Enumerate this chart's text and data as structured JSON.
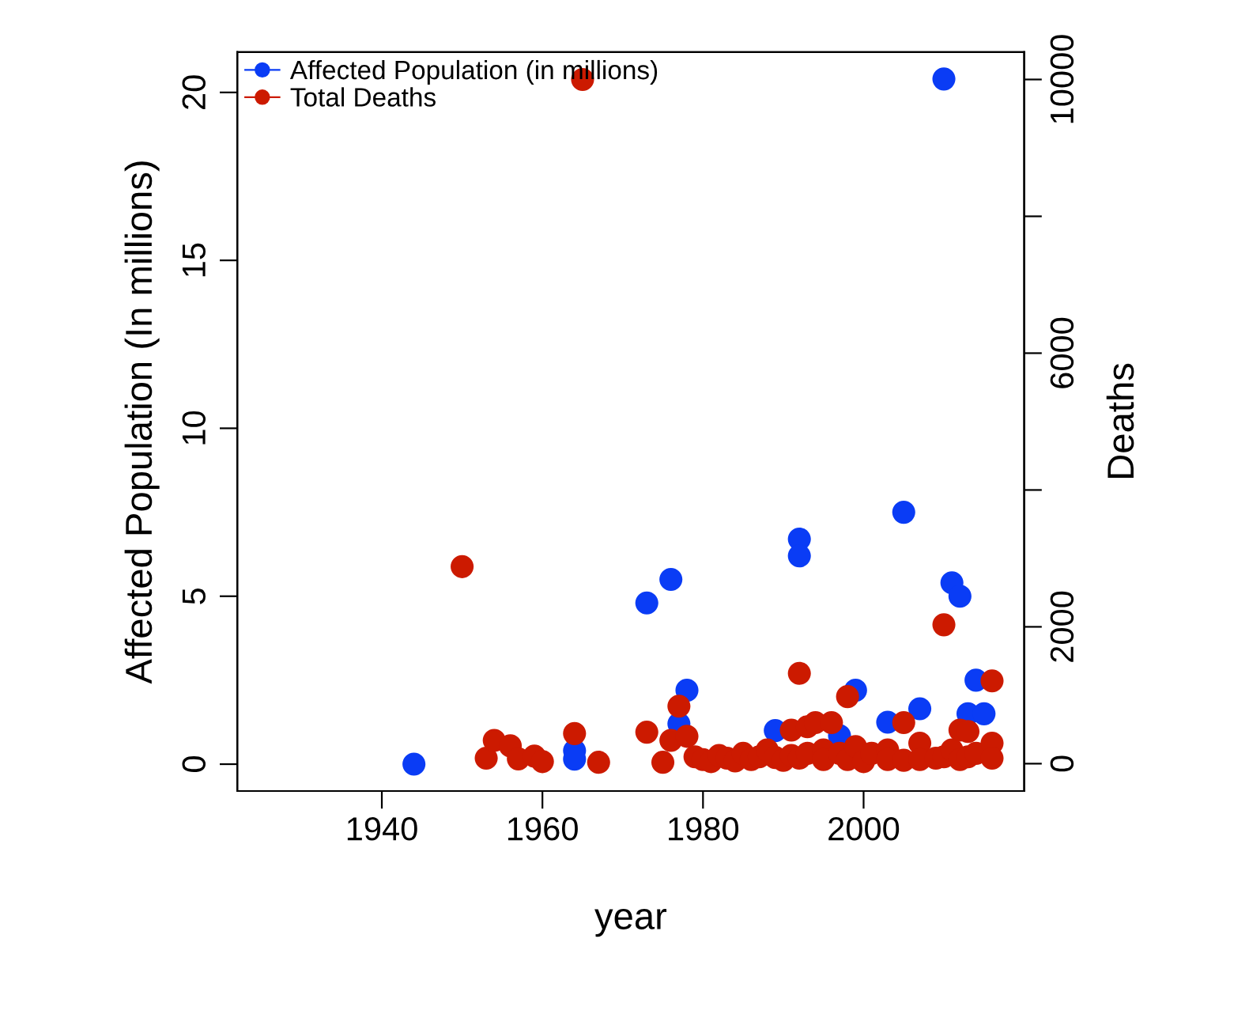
{
  "chart_data": {
    "type": "scatter",
    "xlabel": "year",
    "ylabel": "Affected Population (In millions)",
    "y2label": "Deaths",
    "xlim": [
      1922,
      2020
    ],
    "xticks": [
      1940,
      1960,
      1980,
      2000
    ],
    "ylim": [
      -0.8,
      21.2
    ],
    "yticks": [
      0,
      5,
      10,
      15,
      20
    ],
    "y2lim": [
      -400,
      10400
    ],
    "y2ticks": [
      0,
      2000,
      {
        "value": 4000,
        "label": null
      },
      6000,
      {
        "value": 8000,
        "label": null
      },
      10000
    ],
    "marker": "circle",
    "grid": false,
    "legend": "top left",
    "series": [
      {
        "name": "Affected Population (in millions)",
        "color": "#0a3cf5",
        "x": [
          1944,
          1964,
          1964,
          1973,
          1976,
          1977,
          1978,
          1989,
          1992,
          1992,
          1997,
          1999,
          2003,
          2005,
          2007,
          2010,
          2011,
          2012,
          2013,
          2014,
          2015
        ],
        "values": [
          0.0,
          0.4,
          0.15,
          4.8,
          5.5,
          1.2,
          2.2,
          1.0,
          6.7,
          6.2,
          0.85,
          2.2,
          1.25,
          7.5,
          1.65,
          20.4,
          5.4,
          5.0,
          1.5,
          2.5,
          1.5
        ]
      },
      {
        "name": "Total Deaths",
        "color": "#cc1a00",
        "axis": "y2",
        "x": [
          1950,
          1953,
          1954,
          1956,
          1957,
          1959,
          1960,
          1964,
          1965,
          1967,
          1973,
          1975,
          1976,
          1977,
          1978,
          1979,
          1980,
          1981,
          1982,
          1983,
          1984,
          1985,
          1986,
          1987,
          1988,
          1989,
          1990,
          1991,
          1991,
          1992,
          1992,
          1993,
          1993,
          1994,
          1995,
          1995,
          1996,
          1997,
          1998,
          1998,
          1999,
          2000,
          2001,
          2003,
          2003,
          2005,
          2005,
          2007,
          2007,
          2009,
          2010,
          2010,
          2011,
          2012,
          2012,
          2013,
          2013,
          2014,
          2016,
          2016,
          2016
        ],
        "values": [
          2880,
          80,
          340,
          260,
          70,
          110,
          30,
          440,
          10000,
          20,
          460,
          20,
          340,
          840,
          400,
          100,
          60,
          30,
          120,
          80,
          40,
          150,
          60,
          100,
          200,
          90,
          50,
          490,
          120,
          1320,
          80,
          540,
          150,
          600,
          200,
          60,
          600,
          150,
          980,
          60,
          250,
          30,
          150,
          200,
          60,
          600,
          50,
          300,
          60,
          80,
          2030,
          100,
          200,
          490,
          60,
          470,
          100,
          150,
          1210,
          300,
          80
        ]
      }
    ]
  }
}
